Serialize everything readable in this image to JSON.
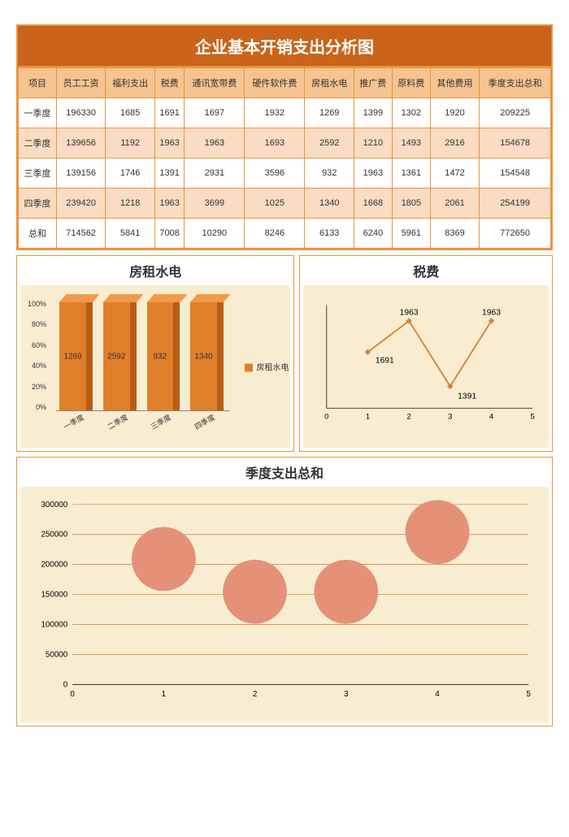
{
  "title": "企业基本开销支出分析图",
  "table": {
    "columns": [
      "项目",
      "员工工资",
      "福利支出",
      "税费",
      "通讯宽带费",
      "硬件软件费",
      "房租水电",
      "推广费",
      "原料费",
      "其他费用",
      "季度支出总和"
    ],
    "rows": [
      [
        "一季度",
        "196330",
        "1685",
        "1691",
        "1697",
        "1932",
        "1269",
        "1399",
        "1302",
        "1920",
        "209225"
      ],
      [
        "二季度",
        "139656",
        "1192",
        "1963",
        "1963",
        "1693",
        "2592",
        "1210",
        "1493",
        "2916",
        "154678"
      ],
      [
        "三季度",
        "139156",
        "1746",
        "1391",
        "2931",
        "3596",
        "932",
        "1963",
        "1361",
        "1472",
        "154548"
      ],
      [
        "四季度",
        "239420",
        "1218",
        "1963",
        "3699",
        "1025",
        "1340",
        "1668",
        "1805",
        "2061",
        "254199"
      ],
      [
        "总和",
        "714562",
        "5841",
        "7008",
        "10290",
        "8246",
        "6133",
        "6240",
        "5961",
        "8369",
        "772650"
      ]
    ],
    "header_bg": "#f5c490",
    "alt_bg": "#f9dcc2",
    "border_color": "#e8953f"
  },
  "bar3d_chart": {
    "title": "房租水电",
    "type": "bar3d_100pct",
    "categories": [
      "一季度",
      "二季度",
      "三季度",
      "四季度"
    ],
    "values": [
      1269,
      2592,
      932,
      1340
    ],
    "bar_color": "#e07f2a",
    "bar_side_color": "#b85d15",
    "bar_top_color": "#f09a4a",
    "background_color": "#f8edd0",
    "ylabels": [
      "100%",
      "80%",
      "60%",
      "40%",
      "20%",
      "0%"
    ],
    "legend_label": "房租水电"
  },
  "line_chart": {
    "title": "税费",
    "type": "line",
    "x": [
      1,
      2,
      3,
      4
    ],
    "y": [
      1691,
      1963,
      1391,
      1963
    ],
    "labels": [
      "1691",
      "1963",
      "1391",
      "1963"
    ],
    "marker_color": "#d8823a",
    "line_color": "#d8823a",
    "background_color": "#f8edd0",
    "xlim": [
      0,
      5
    ],
    "xticks": [
      0,
      1,
      2,
      3,
      4,
      5
    ],
    "ylim": [
      1200,
      2100
    ]
  },
  "bubble_chart": {
    "title": "季度支出总和",
    "type": "bubble",
    "x": [
      1,
      2,
      3,
      4
    ],
    "y": [
      209225,
      154678,
      154548,
      254199
    ],
    "bubble_color": "#e49178",
    "bubble_radius": 40,
    "background_color": "#f8edd0",
    "grid_color": "#c9641a",
    "xlim": [
      0,
      5
    ],
    "xticks": [
      0,
      1,
      2,
      3,
      4,
      5
    ],
    "ylim": [
      0,
      300000
    ],
    "ytick_step": 50000
  },
  "colors": {
    "accent": "#c9641a",
    "border": "#e8953f"
  }
}
